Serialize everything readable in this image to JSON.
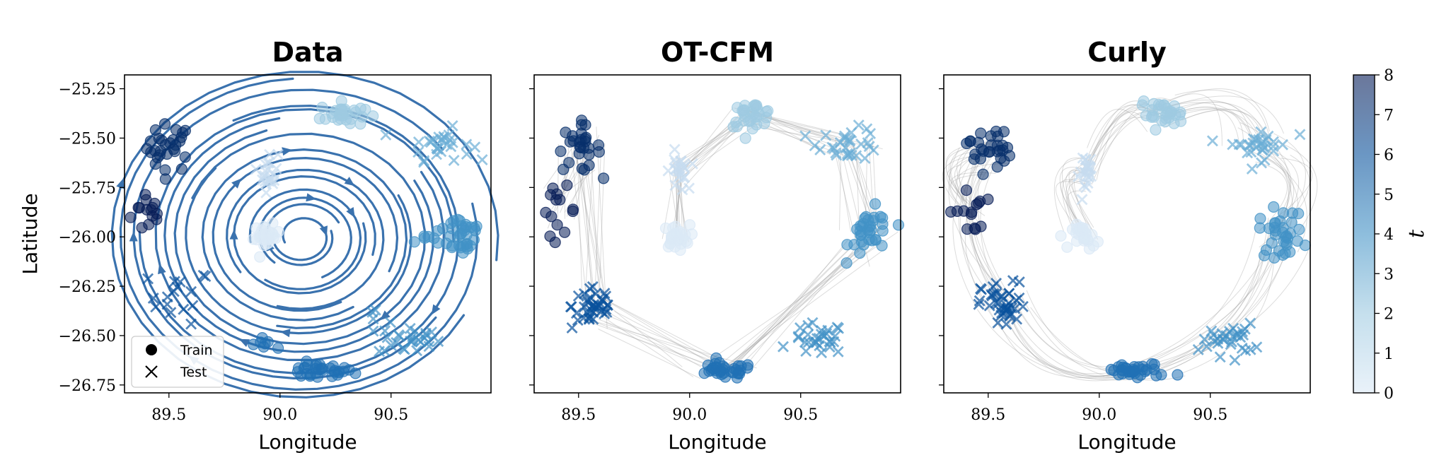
{
  "chart_data": [
    {
      "type": "scatter",
      "title": "Data",
      "xlabel": "Longitude",
      "ylabel": "Latitude",
      "xlim": [
        89.3,
        90.95
      ],
      "ylim": [
        -26.79,
        -25.18
      ],
      "xticks": [
        89.5,
        90.0,
        90.5
      ],
      "xtick_labels": [
        "89.5",
        "90.0",
        "90.5"
      ],
      "yticks": [
        -25.25,
        -25.5,
        -25.75,
        -26.0,
        -26.25,
        -26.5,
        -26.75
      ],
      "ytick_labels": [
        "−25.25",
        "−25.50",
        "−25.75",
        "−26.00",
        "−26.25",
        "−26.50",
        "−26.75"
      ],
      "overlay": "streamlines",
      "legend": {
        "position": "bottom-left",
        "items": [
          {
            "label": "Train",
            "marker": "circle"
          },
          {
            "label": "Test",
            "marker": "x"
          }
        ]
      },
      "clusters": [
        {
          "t": 8,
          "split": "train",
          "cx": 89.41,
          "cy": -25.87,
          "sx": 0.04,
          "sy": 0.06,
          "n": 14
        },
        {
          "t": 7,
          "split": "train",
          "cx": 89.5,
          "cy": -25.55,
          "sx": 0.05,
          "sy": 0.06,
          "n": 28
        },
        {
          "t": 6,
          "split": "test",
          "cx": 89.55,
          "cy": -26.3,
          "sx": 0.07,
          "sy": 0.07,
          "n": 16
        },
        {
          "t": 5,
          "split": "train",
          "cx": 90.17,
          "cy": -26.68,
          "sx": 0.08,
          "sy": 0.02,
          "n": 32
        },
        {
          "t": 5,
          "split": "train",
          "cx": 89.95,
          "cy": -26.55,
          "sx": 0.04,
          "sy": 0.02,
          "n": 7
        },
        {
          "t": 4,
          "split": "test",
          "cx": 90.58,
          "cy": -26.52,
          "sx": 0.07,
          "sy": 0.04,
          "n": 28
        },
        {
          "t": 4,
          "split": "test",
          "cx": 90.4,
          "cy": -26.4,
          "sx": 0.02,
          "sy": 0.02,
          "n": 3
        },
        {
          "t": 4,
          "split": "train",
          "cx": 90.82,
          "cy": -25.98,
          "sx": 0.05,
          "sy": 0.06,
          "n": 34
        },
        {
          "t": 4,
          "split": "train",
          "cx": 90.65,
          "cy": -26.0,
          "sx": 0.04,
          "sy": 0.02,
          "n": 6
        },
        {
          "t": 3,
          "split": "test",
          "cx": 90.72,
          "cy": -25.53,
          "sx": 0.07,
          "sy": 0.04,
          "n": 30
        },
        {
          "t": 2,
          "split": "train",
          "cx": 90.28,
          "cy": -25.38,
          "sx": 0.05,
          "sy": 0.03,
          "n": 30
        },
        {
          "t": 1,
          "split": "test",
          "cx": 89.95,
          "cy": -25.67,
          "sx": 0.02,
          "sy": 0.05,
          "n": 22
        },
        {
          "t": 0,
          "split": "train",
          "cx": 89.94,
          "cy": -26.0,
          "sx": 0.03,
          "sy": 0.03,
          "n": 26
        }
      ]
    },
    {
      "type": "scatter",
      "title": "OT-CFM",
      "xlabel": "Longitude",
      "ylabel": "",
      "xlim": [
        89.3,
        90.95
      ],
      "ylim": [
        -26.79,
        -25.18
      ],
      "xticks": [
        89.5,
        90.0,
        90.5
      ],
      "xtick_labels": [
        "89.5",
        "90.0",
        "90.5"
      ],
      "overlay": "straight-trajectories",
      "clusters": [
        {
          "t": 8,
          "split": "train",
          "cx": 89.41,
          "cy": -25.87,
          "sx": 0.04,
          "sy": 0.06,
          "n": 14
        },
        {
          "t": 7,
          "split": "train",
          "cx": 89.5,
          "cy": -25.55,
          "sx": 0.05,
          "sy": 0.06,
          "n": 28
        },
        {
          "t": 6,
          "split": "test",
          "cx": 89.57,
          "cy": -26.35,
          "sx": 0.05,
          "sy": 0.06,
          "n": 40
        },
        {
          "t": 5,
          "split": "train",
          "cx": 90.15,
          "cy": -26.68,
          "sx": 0.07,
          "sy": 0.02,
          "n": 34
        },
        {
          "t": 4,
          "split": "test",
          "cx": 90.58,
          "cy": -26.52,
          "sx": 0.06,
          "sy": 0.04,
          "n": 30
        },
        {
          "t": 4,
          "split": "train",
          "cx": 90.82,
          "cy": -25.98,
          "sx": 0.05,
          "sy": 0.06,
          "n": 34
        },
        {
          "t": 3,
          "split": "test",
          "cx": 90.72,
          "cy": -25.53,
          "sx": 0.07,
          "sy": 0.04,
          "n": 30
        },
        {
          "t": 2,
          "split": "train",
          "cx": 90.28,
          "cy": -25.38,
          "sx": 0.05,
          "sy": 0.03,
          "n": 30
        },
        {
          "t": 1,
          "split": "test",
          "cx": 89.95,
          "cy": -25.67,
          "sx": 0.02,
          "sy": 0.05,
          "n": 22
        },
        {
          "t": 0,
          "split": "train",
          "cx": 89.94,
          "cy": -26.0,
          "sx": 0.03,
          "sy": 0.03,
          "n": 26
        }
      ]
    },
    {
      "type": "scatter",
      "title": "Curly",
      "xlabel": "Longitude",
      "ylabel": "",
      "xlim": [
        89.3,
        90.95
      ],
      "ylim": [
        -26.79,
        -25.18
      ],
      "xticks": [
        89.5,
        90.0,
        90.5
      ],
      "xtick_labels": [
        "89.5",
        "90.0",
        "90.5"
      ],
      "overlay": "curved-trajectories",
      "clusters": [
        {
          "t": 8,
          "split": "train",
          "cx": 89.41,
          "cy": -25.87,
          "sx": 0.04,
          "sy": 0.06,
          "n": 14
        },
        {
          "t": 7,
          "split": "train",
          "cx": 89.5,
          "cy": -25.55,
          "sx": 0.05,
          "sy": 0.06,
          "n": 28
        },
        {
          "t": 6,
          "split": "test",
          "cx": 89.57,
          "cy": -26.35,
          "sx": 0.05,
          "sy": 0.06,
          "n": 40
        },
        {
          "t": 5,
          "split": "train",
          "cx": 90.17,
          "cy": -26.68,
          "sx": 0.08,
          "sy": 0.02,
          "n": 34
        },
        {
          "t": 4,
          "split": "test",
          "cx": 90.58,
          "cy": -26.52,
          "sx": 0.06,
          "sy": 0.04,
          "n": 30
        },
        {
          "t": 4,
          "split": "train",
          "cx": 90.82,
          "cy": -25.98,
          "sx": 0.05,
          "sy": 0.06,
          "n": 34
        },
        {
          "t": 3,
          "split": "test",
          "cx": 90.72,
          "cy": -25.53,
          "sx": 0.07,
          "sy": 0.04,
          "n": 30
        },
        {
          "t": 2,
          "split": "train",
          "cx": 90.28,
          "cy": -25.38,
          "sx": 0.05,
          "sy": 0.03,
          "n": 30
        },
        {
          "t": 1,
          "split": "test",
          "cx": 89.95,
          "cy": -25.67,
          "sx": 0.02,
          "sy": 0.05,
          "n": 22
        },
        {
          "t": 0,
          "split": "train",
          "cx": 89.94,
          "cy": -26.0,
          "sx": 0.03,
          "sy": 0.03,
          "n": 26
        }
      ]
    }
  ],
  "colorbar": {
    "label": "t",
    "min": 0,
    "max": 8,
    "ticks": [
      "0",
      "1",
      "2",
      "3",
      "4",
      "5",
      "6",
      "7",
      "8"
    ],
    "colors": [
      "#dbe9f6",
      "#c6dbef",
      "#9ecae1",
      "#6baed6",
      "#4292c6",
      "#2171b5",
      "#08519c",
      "#08306b",
      "#081d58"
    ]
  },
  "colors": {
    "streamline": "#3a72ae",
    "trajectory": "#9a9a9a"
  }
}
